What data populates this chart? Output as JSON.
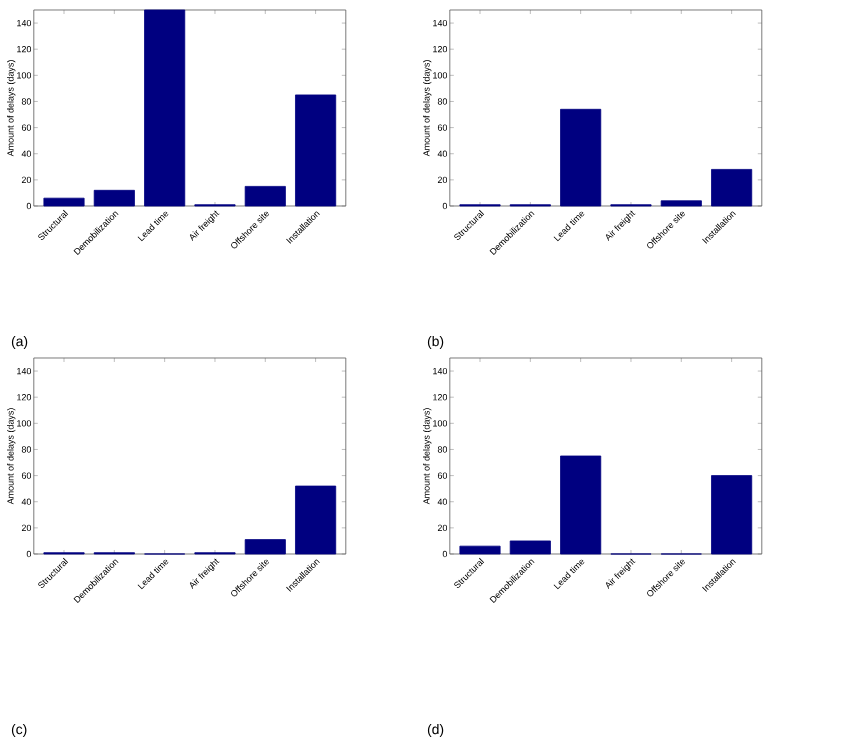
{
  "chart_data": [
    {
      "type": "bar",
      "ylabel": "Amount of delays (days)",
      "categories": [
        "Structural",
        "Demobilization",
        "Lead time",
        "Air freight",
        "Offshore site",
        "Installation"
      ],
      "values": [
        6,
        12,
        150,
        1,
        15,
        85
      ],
      "color": "#000080",
      "ylim": [
        0,
        150
      ],
      "yticks": [
        0,
        20,
        40,
        60,
        80,
        100,
        120,
        140
      ],
      "annotations": [
        "(a)"
      ]
    },
    {
      "type": "bar",
      "ylabel": "Amount of delays (days)",
      "categories": [
        "Structural",
        "Demobilization",
        "Lead time",
        "Air freight",
        "Offshore site",
        "Installation"
      ],
      "values": [
        1,
        1,
        74,
        1,
        4,
        28
      ],
      "color": "#000080",
      "ylim": [
        0,
        150
      ],
      "yticks": [
        0,
        20,
        40,
        60,
        80,
        100,
        120,
        140
      ],
      "annotations": [
        "(b)"
      ]
    },
    {
      "type": "bar",
      "ylabel": "Amount of delays (days)",
      "categories": [
        "Structural",
        "Demobilization",
        "Lead time",
        "Air freight",
        "Offshore site",
        "Installation"
      ],
      "values": [
        1,
        1,
        0,
        1,
        11,
        52
      ],
      "color": "#000080",
      "ylim": [
        0,
        150
      ],
      "yticks": [
        0,
        20,
        40,
        60,
        80,
        100,
        120,
        140
      ],
      "annotations": [
        "(c)"
      ]
    },
    {
      "type": "bar",
      "ylabel": "Amount of delays (days)",
      "categories": [
        "Structural",
        "Demobilization",
        "Lead time",
        "Air freight",
        "Offshore site",
        "Installation"
      ],
      "values": [
        6,
        10,
        75,
        0,
        0,
        60
      ],
      "color": "#000080",
      "ylim": [
        0,
        150
      ],
      "yticks": [
        0,
        20,
        40,
        60,
        80,
        100,
        120,
        140
      ],
      "annotations": [
        "(d)"
      ]
    }
  ]
}
